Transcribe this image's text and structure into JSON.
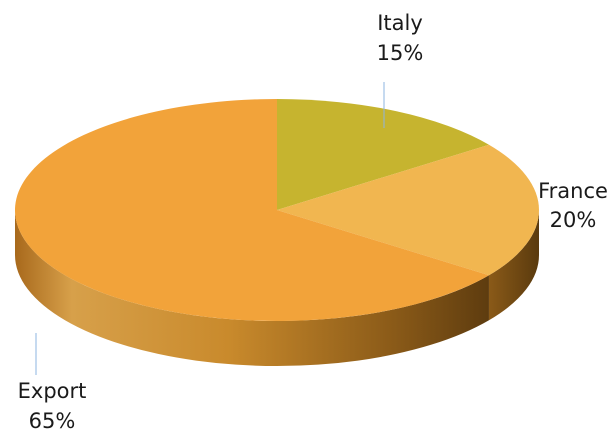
{
  "chart_data": {
    "type": "pie",
    "three_d": true,
    "categories": [
      "Italy",
      "France",
      "Export"
    ],
    "values": [
      15,
      20,
      65
    ],
    "value_labels": [
      "15%",
      "20%",
      "65%"
    ],
    "colors": {
      "Italy": "#c6b42f",
      "France": "#f1b650",
      "Export": "#f2a33a",
      "side_light": "#d59a3a",
      "side_dark": "#6b4612",
      "leader": "#8db4e2"
    }
  }
}
